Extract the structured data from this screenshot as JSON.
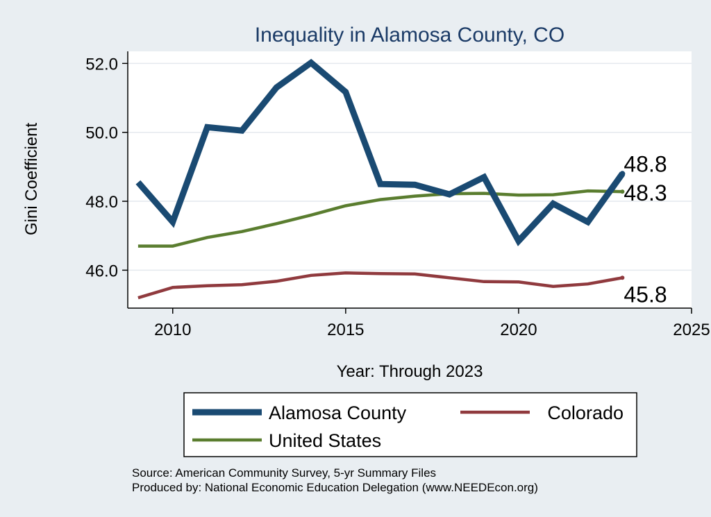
{
  "chart_data": {
    "type": "line",
    "title": "Inequality in Alamosa County, CO",
    "xlabel": "Year: Through 2023",
    "ylabel": "Gini Coefficient",
    "xlim": [
      2008.7,
      2025
    ],
    "ylim": [
      44.9,
      52.35
    ],
    "x_ticks": [
      2010,
      2015,
      2020,
      2025
    ],
    "x_tick_labels": [
      "2010",
      "2015",
      "2020",
      "2025"
    ],
    "y_ticks": [
      46,
      48,
      50,
      52
    ],
    "y_tick_labels": [
      "46.0",
      "48.0",
      "50.0",
      "52.0"
    ],
    "grid": true,
    "legend_position": "bottom",
    "x": [
      2009,
      2010,
      2011,
      2012,
      2013,
      2014,
      2015,
      2016,
      2017,
      2018,
      2019,
      2020,
      2021,
      2022,
      2023
    ],
    "series": [
      {
        "name": "Alamosa County",
        "color": "#1a4a72",
        "values": [
          48.55,
          47.4,
          50.15,
          50.05,
          51.3,
          52.02,
          51.17,
          48.5,
          48.48,
          48.2,
          48.7,
          46.85,
          47.93,
          47.4,
          48.8
        ],
        "end_label": "48.8"
      },
      {
        "name": "Colorado",
        "color": "#903a3e",
        "values": [
          45.2,
          45.5,
          45.55,
          45.58,
          45.68,
          45.85,
          45.92,
          45.9,
          45.89,
          45.78,
          45.67,
          45.66,
          45.53,
          45.6,
          45.78
        ],
        "end_label": "45.8"
      },
      {
        "name": "United States",
        "color": "#5a7d2f",
        "values": [
          46.7,
          46.7,
          46.95,
          47.12,
          47.35,
          47.6,
          47.87,
          48.05,
          48.15,
          48.22,
          48.23,
          48.18,
          48.19,
          48.3,
          48.28
        ],
        "end_label": "48.3"
      }
    ]
  },
  "source": {
    "line1": "Source: American Community Survey, 5-yr Summary Files",
    "line2": "Produced by: National Economic Education Delegation (www.NEEDEcon.org)"
  }
}
